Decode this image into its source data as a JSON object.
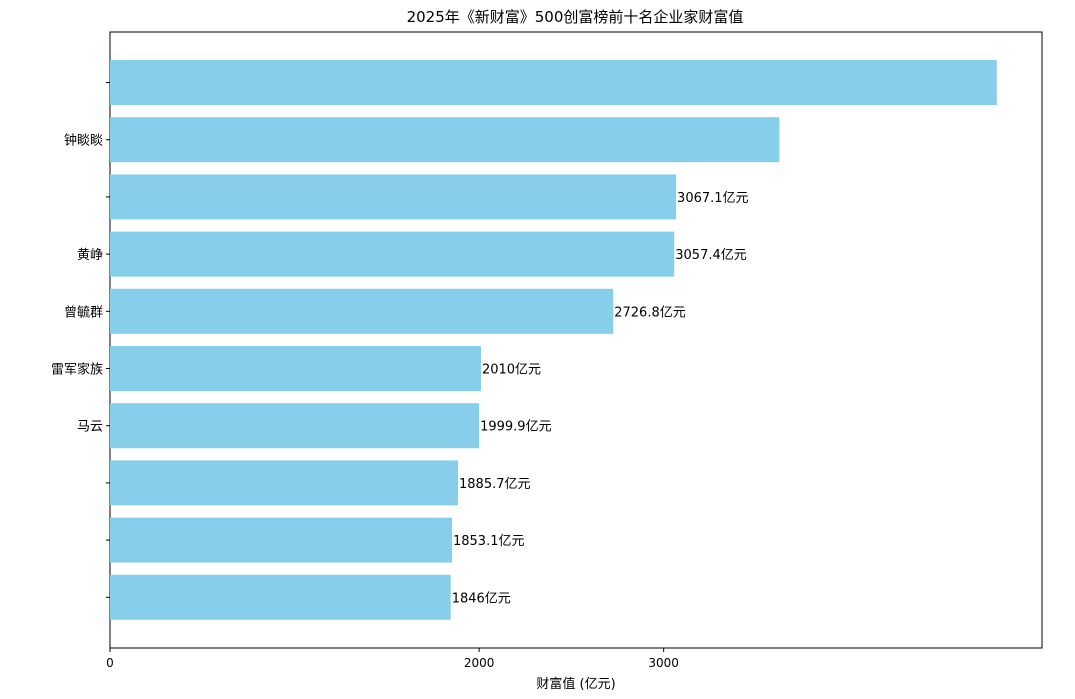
{
  "chart_data": {
    "type": "bar",
    "orientation": "horizontal",
    "title": "2025年《新财富》500创富榜前十名企业家财富值",
    "xlabel": "财富值 (亿元)",
    "ylabel": "",
    "xlim": [
      0,
      5050
    ],
    "xticks": [
      0,
      2000,
      3000
    ],
    "categories": [
      "",
      "钟睒睒",
      "",
      "黄峥",
      "曾毓群",
      "雷军家族",
      "马云",
      "",
      "",
      ""
    ],
    "values": [
      4805,
      3627,
      3067.1,
      3057.4,
      2726.8,
      2010,
      1999.9,
      1885.7,
      1853.1,
      1846
    ],
    "data_labels": [
      "",
      "",
      "3067.1亿元",
      "3057.4亿元",
      "2726.8亿元",
      "2010亿元",
      "1999.9亿元",
      "1885.7亿元",
      "1853.1亿元",
      "1846亿元"
    ],
    "bar_color": "#87CEEB",
    "grid": false
  }
}
